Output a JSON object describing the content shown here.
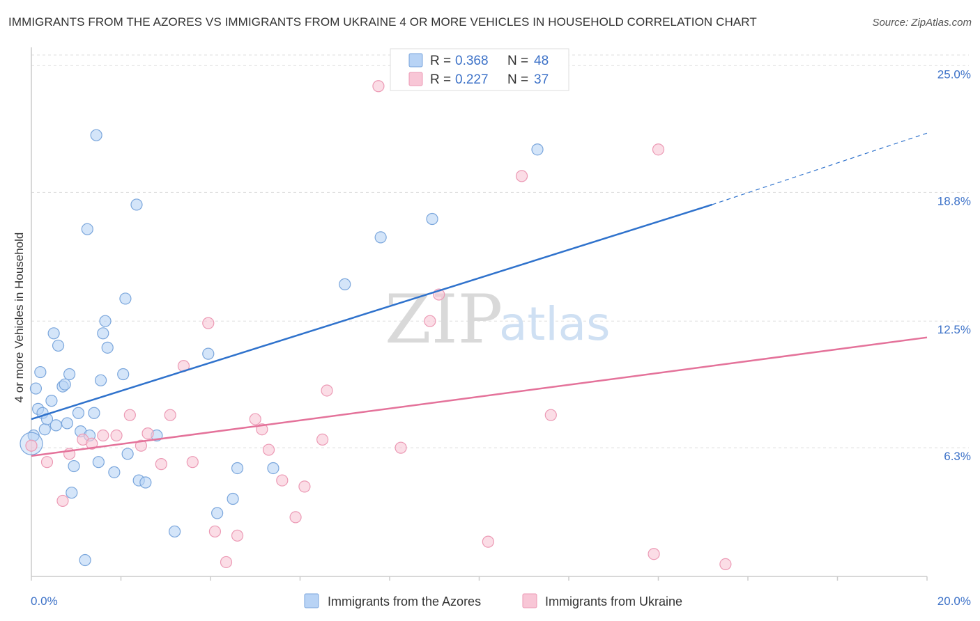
{
  "title": "IMMIGRANTS FROM THE AZORES VS IMMIGRANTS FROM UKRAINE 4 OR MORE VEHICLES IN HOUSEHOLD CORRELATION CHART",
  "source": "Source: ZipAtlas.com",
  "watermark": {
    "zip": "ZIP",
    "atlas": "atlas"
  },
  "colors": {
    "azores_fill": "#b8d3f5",
    "azores_stroke": "#7aa6dc",
    "azores_line": "#2f72cc",
    "ukraine_fill": "#f8c6d6",
    "ukraine_stroke": "#ec9ab5",
    "ukraine_line": "#e4729a",
    "tick_text": "#3d72c8",
    "grid": "#dddddd"
  },
  "legend": {
    "r_label": "R =",
    "n_label": "N =",
    "azores": {
      "r": "0.368",
      "n": "48"
    },
    "ukraine": {
      "r": "0.227",
      "n": "37"
    }
  },
  "chart_data": {
    "type": "scatter",
    "title": "IMMIGRANTS FROM THE AZORES VS IMMIGRANTS FROM UKRAINE 4 OR MORE VEHICLES IN HOUSEHOLD CORRELATION CHART",
    "xlabel": "",
    "ylabel": "4 or more Vehicles in Household",
    "xlim": [
      0,
      20
    ],
    "ylim": [
      0,
      25.9
    ],
    "x_tick_labels": [
      "0.0%",
      "20.0%"
    ],
    "y_ticks": [
      6.3,
      12.5,
      18.8,
      25.0
    ],
    "y_tick_labels": [
      "6.3%",
      "12.5%",
      "18.8%",
      "25.0%"
    ],
    "grid": true,
    "legend_position": "top-center",
    "series": [
      {
        "name": "Immigrants from the Azores",
        "trend": {
          "x": [
            0,
            15.2
          ],
          "y": [
            7.7,
            18.2
          ],
          "extended_to": [
            20,
            21.7
          ]
        },
        "points": [
          [
            0.05,
            6.9
          ],
          [
            0.1,
            9.2
          ],
          [
            0.15,
            8.2
          ],
          [
            0.2,
            10.0
          ],
          [
            0.25,
            8.0
          ],
          [
            0.3,
            7.2
          ],
          [
            0.35,
            7.7
          ],
          [
            0.45,
            8.6
          ],
          [
            0.5,
            11.9
          ],
          [
            0.55,
            7.4
          ],
          [
            0.6,
            11.3
          ],
          [
            0.7,
            9.3
          ],
          [
            0.75,
            9.4
          ],
          [
            0.8,
            7.5
          ],
          [
            0.85,
            9.9
          ],
          [
            0.9,
            4.1
          ],
          [
            0.95,
            5.4
          ],
          [
            1.05,
            8.0
          ],
          [
            1.1,
            7.1
          ],
          [
            1.2,
            0.8
          ],
          [
            1.25,
            17.0
          ],
          [
            1.3,
            6.9
          ],
          [
            1.4,
            8.0
          ],
          [
            1.45,
            21.6
          ],
          [
            1.5,
            5.6
          ],
          [
            1.55,
            9.6
          ],
          [
            1.6,
            11.9
          ],
          [
            1.65,
            12.5
          ],
          [
            1.7,
            11.2
          ],
          [
            1.85,
            5.1
          ],
          [
            2.05,
            9.9
          ],
          [
            2.1,
            13.6
          ],
          [
            2.15,
            6.0
          ],
          [
            2.35,
            18.2
          ],
          [
            2.4,
            4.7
          ],
          [
            2.55,
            4.6
          ],
          [
            2.8,
            6.9
          ],
          [
            3.2,
            2.2
          ],
          [
            3.95,
            10.9
          ],
          [
            4.15,
            3.1
          ],
          [
            4.5,
            3.8
          ],
          [
            4.6,
            5.3
          ],
          [
            5.4,
            5.3
          ],
          [
            7.0,
            14.3
          ],
          [
            7.8,
            16.6
          ],
          [
            8.95,
            17.5
          ],
          [
            11.3,
            20.9
          ],
          [
            0.0,
            6.5
          ]
        ]
      },
      {
        "name": "Immigrants from Ukraine",
        "trend": {
          "x": [
            0,
            20
          ],
          "y": [
            5.9,
            11.7
          ]
        },
        "points": [
          [
            0.0,
            6.4
          ],
          [
            0.35,
            5.6
          ],
          [
            0.7,
            3.7
          ],
          [
            0.85,
            6.0
          ],
          [
            1.15,
            6.7
          ],
          [
            1.35,
            6.5
          ],
          [
            1.6,
            6.9
          ],
          [
            1.9,
            6.9
          ],
          [
            2.2,
            7.9
          ],
          [
            2.45,
            6.4
          ],
          [
            2.6,
            7.0
          ],
          [
            2.9,
            5.5
          ],
          [
            3.1,
            7.9
          ],
          [
            3.4,
            10.3
          ],
          [
            3.6,
            5.6
          ],
          [
            3.95,
            12.4
          ],
          [
            4.1,
            2.2
          ],
          [
            4.35,
            0.7
          ],
          [
            4.6,
            2.0
          ],
          [
            5.0,
            7.7
          ],
          [
            5.15,
            7.2
          ],
          [
            5.3,
            6.2
          ],
          [
            5.6,
            4.7
          ],
          [
            5.9,
            2.9
          ],
          [
            6.1,
            4.4
          ],
          [
            6.5,
            6.7
          ],
          [
            6.6,
            9.1
          ],
          [
            7.75,
            24.0
          ],
          [
            8.25,
            6.3
          ],
          [
            8.9,
            12.5
          ],
          [
            9.1,
            13.8
          ],
          [
            10.2,
            1.7
          ],
          [
            10.95,
            19.6
          ],
          [
            11.6,
            7.9
          ],
          [
            13.9,
            1.1
          ],
          [
            14.0,
            20.9
          ],
          [
            15.5,
            0.6
          ]
        ]
      }
    ]
  }
}
